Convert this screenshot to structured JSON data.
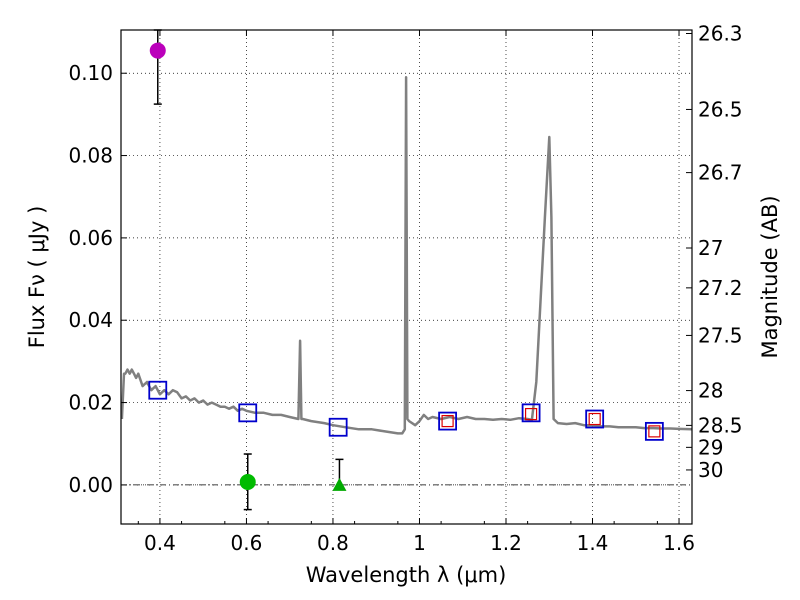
{
  "chart_data": {
    "type": "line",
    "xlabel": "Wavelength  λ (μm)",
    "ylabel_left": "Flux  Fν  ( μJy )",
    "ylabel_right": "Magnitude (AB)",
    "xlim": [
      0.31,
      1.63
    ],
    "ylim": [
      -0.0095,
      0.1105
    ],
    "grid": true,
    "xticks": [
      0.4,
      0.6,
      0.8,
      1.0,
      1.2,
      1.4,
      1.6
    ],
    "xtick_labels": [
      "0.4",
      "0.6",
      "0.8",
      "1",
      "1.2",
      "1.4",
      "1.6"
    ],
    "yticks": [
      0.0,
      0.02,
      0.04,
      0.06,
      0.08,
      0.1
    ],
    "ytick_labels": [
      "0.00",
      "0.02",
      "0.04",
      "0.06",
      "0.08",
      "0.10"
    ],
    "mag_ticks": [
      "26.3",
      "26.5",
      "26.7",
      "27",
      "27.2",
      "27.5",
      "28",
      "28.5",
      "29",
      "30"
    ],
    "model_spectrum": {
      "color": "#808080",
      "x": [
        0.312,
        0.317,
        0.32,
        0.325,
        0.33,
        0.335,
        0.34,
        0.345,
        0.35,
        0.36,
        0.37,
        0.38,
        0.39,
        0.4,
        0.41,
        0.42,
        0.43,
        0.44,
        0.45,
        0.46,
        0.47,
        0.48,
        0.49,
        0.5,
        0.51,
        0.52,
        0.53,
        0.54,
        0.55,
        0.56,
        0.57,
        0.58,
        0.59,
        0.6,
        0.62,
        0.64,
        0.66,
        0.68,
        0.7,
        0.72,
        0.724,
        0.727,
        0.73,
        0.75,
        0.78,
        0.8,
        0.83,
        0.86,
        0.89,
        0.92,
        0.95,
        0.96,
        0.966,
        0.969,
        0.972,
        0.976,
        0.99,
        1.0,
        1.01,
        1.02,
        1.03,
        1.05,
        1.07,
        1.09,
        1.11,
        1.13,
        1.15,
        1.17,
        1.19,
        1.21,
        1.23,
        1.25,
        1.26,
        1.27,
        1.28,
        1.29,
        1.3,
        1.305,
        1.31,
        1.32,
        1.34,
        1.36,
        1.38,
        1.4,
        1.42,
        1.44,
        1.46,
        1.48,
        1.5,
        1.52,
        1.54,
        1.56,
        1.58,
        1.6,
        1.63
      ],
      "y": [
        0.016,
        0.027,
        0.027,
        0.028,
        0.027,
        0.028,
        0.027,
        0.026,
        0.027,
        0.024,
        0.025,
        0.023,
        0.024,
        0.022,
        0.023,
        0.022,
        0.023,
        0.0225,
        0.021,
        0.0215,
        0.0205,
        0.021,
        0.02,
        0.0205,
        0.0195,
        0.02,
        0.0195,
        0.019,
        0.019,
        0.0185,
        0.019,
        0.018,
        0.0185,
        0.018,
        0.0175,
        0.0175,
        0.017,
        0.017,
        0.0165,
        0.016,
        0.035,
        0.016,
        0.016,
        0.0155,
        0.015,
        0.0145,
        0.014,
        0.0135,
        0.0135,
        0.013,
        0.0125,
        0.0125,
        0.0135,
        0.099,
        0.016,
        0.0155,
        0.0145,
        0.0155,
        0.017,
        0.016,
        0.0165,
        0.016,
        0.0165,
        0.016,
        0.0165,
        0.016,
        0.016,
        0.0158,
        0.016,
        0.0158,
        0.0162,
        0.016,
        0.0158,
        0.025,
        0.045,
        0.065,
        0.0845,
        0.065,
        0.016,
        0.015,
        0.0148,
        0.015,
        0.0145,
        0.0145,
        0.0142,
        0.0142,
        0.014,
        0.014,
        0.014,
        0.0138,
        0.0138,
        0.0137,
        0.0137,
        0.0136,
        0.0135
      ]
    },
    "model_photometry_squares": {
      "color": "#0000cc",
      "points": [
        {
          "x": 0.395,
          "y": 0.023
        },
        {
          "x": 0.603,
          "y": 0.0175
        },
        {
          "x": 0.812,
          "y": 0.014
        },
        {
          "x": 1.065,
          "y": 0.0155
        },
        {
          "x": 1.258,
          "y": 0.0175
        },
        {
          "x": 1.405,
          "y": 0.016
        },
        {
          "x": 1.543,
          "y": 0.013
        }
      ]
    },
    "observed_squares": {
      "color": "#dd0000",
      "points": [
        {
          "x": 1.065,
          "y": 0.0155
        },
        {
          "x": 1.258,
          "y": 0.0172
        },
        {
          "x": 1.405,
          "y": 0.016
        },
        {
          "x": 1.543,
          "y": 0.013
        }
      ]
    },
    "observed_points": [
      {
        "x": 0.395,
        "y": 0.1055,
        "err_low": 0.0925,
        "err_high": 0.1105,
        "marker": "circle",
        "color": "#bb00bb"
      },
      {
        "x": 0.603,
        "y": 0.0007,
        "err_low": -0.006,
        "err_high": 0.0075,
        "marker": "circle",
        "color": "#00bb00"
      },
      {
        "x": 0.815,
        "y": 0.0,
        "err_low": -0.001,
        "err_high": 0.0062,
        "marker": "triangle",
        "color": "#00aa00"
      }
    ]
  }
}
